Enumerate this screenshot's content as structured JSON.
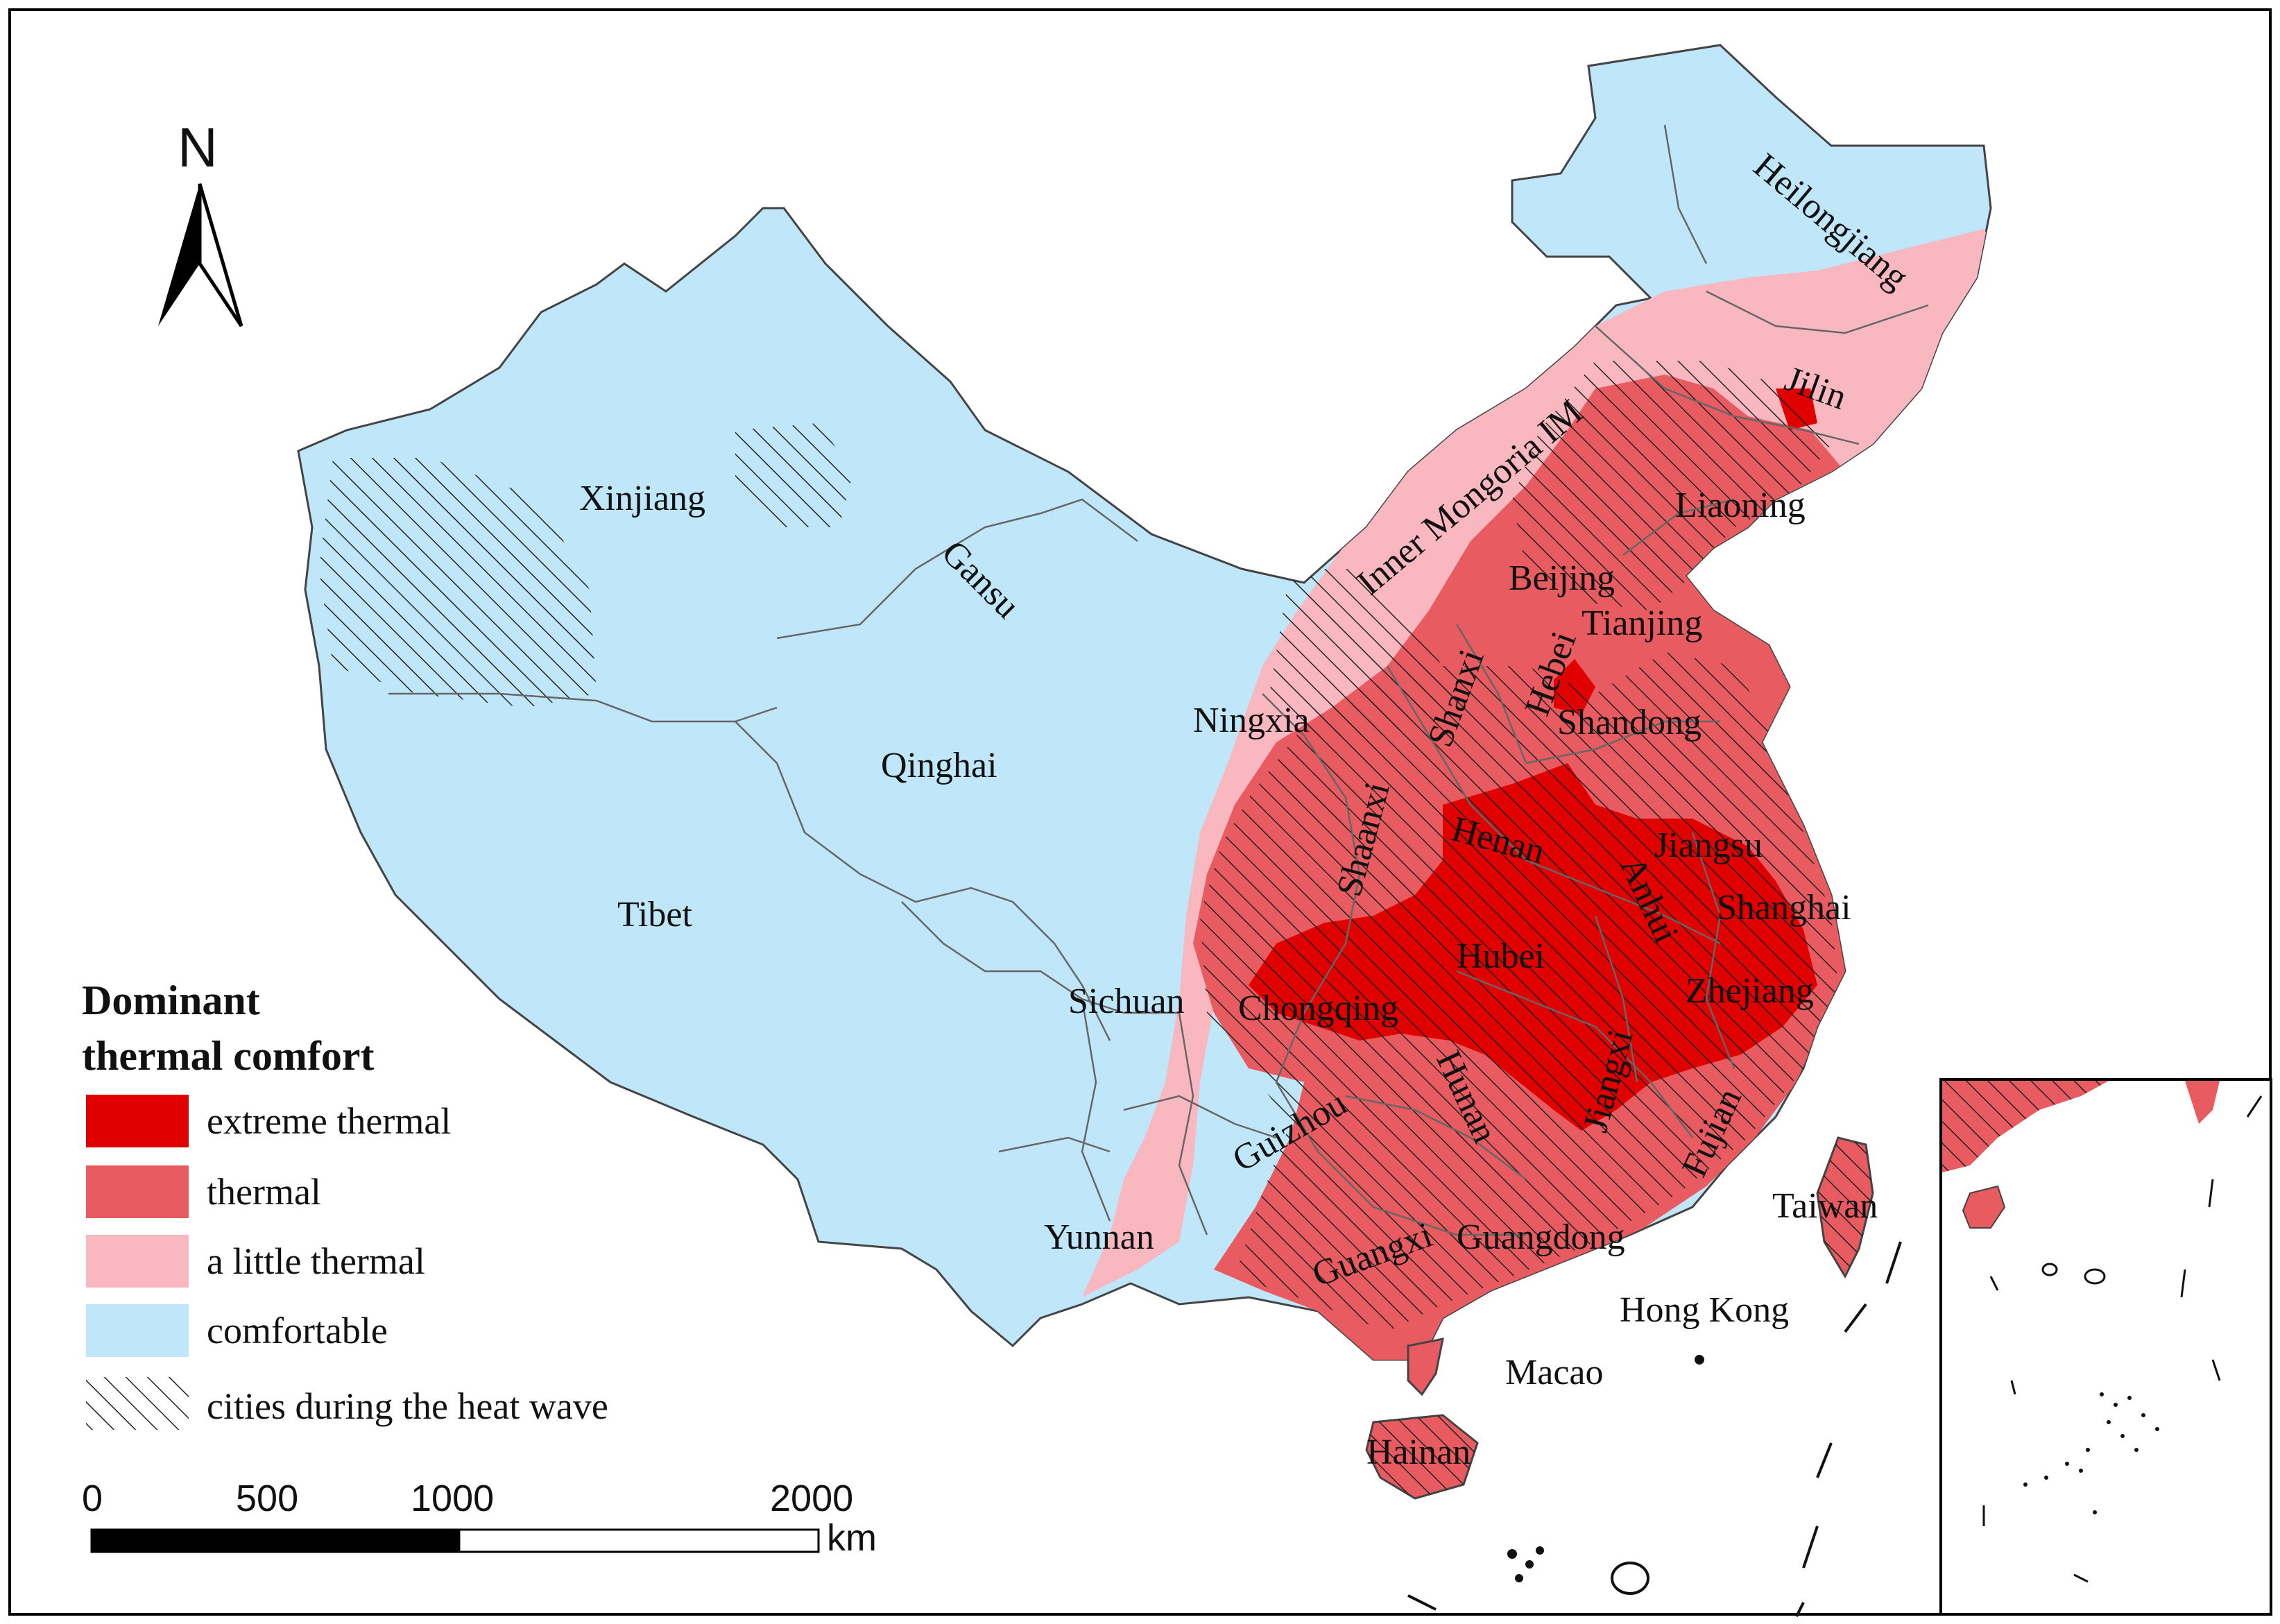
{
  "legend": {
    "title_line1": "Dominant",
    "title_line2": "thermal comfort",
    "items": [
      {
        "label": "extreme thermal",
        "color": "#e00000",
        "pattern": "solid"
      },
      {
        "label": "thermal",
        "color": "#e85b60",
        "pattern": "solid"
      },
      {
        "label": "a little thermal",
        "color": "#f9b8c0",
        "pattern": "solid"
      },
      {
        "label": "comfortable",
        "color": "#bfe6f9",
        "pattern": "solid"
      },
      {
        "label": "cities during the heat wave",
        "color": "#000000",
        "pattern": "hatch"
      }
    ]
  },
  "north_arrow": {
    "label": "N"
  },
  "scale_bar": {
    "ticks": [
      "0",
      "500",
      "1000",
      "2000"
    ],
    "unit": "km"
  },
  "regions": [
    {
      "name": "Xinjiang",
      "class": "comfortable"
    },
    {
      "name": "Gansu",
      "class": "comfortable"
    },
    {
      "name": "Qinghai",
      "class": "comfortable"
    },
    {
      "name": "Tibet",
      "class": "comfortable"
    },
    {
      "name": "Sichuan",
      "class": "comfortable"
    },
    {
      "name": "Yunnan",
      "class": "comfortable"
    },
    {
      "name": "Heilongjiang",
      "class": "comfortable"
    },
    {
      "name": "Inner Mongoria IM",
      "class": "a little thermal"
    },
    {
      "name": "Jilin",
      "class": "a little thermal"
    },
    {
      "name": "Liaoning",
      "class": "thermal"
    },
    {
      "name": "Beijing",
      "class": "thermal"
    },
    {
      "name": "Tianjing",
      "class": "thermal"
    },
    {
      "name": "Ningxia",
      "class": "a little thermal"
    },
    {
      "name": "Shanxi",
      "class": "thermal"
    },
    {
      "name": "Hebei",
      "class": "thermal"
    },
    {
      "name": "Shandong",
      "class": "thermal"
    },
    {
      "name": "Shaanxi",
      "class": "thermal"
    },
    {
      "name": "Henan",
      "class": "extreme thermal"
    },
    {
      "name": "Jiangsu",
      "class": "extreme thermal"
    },
    {
      "name": "Anhui",
      "class": "extreme thermal"
    },
    {
      "name": "Shanghai",
      "class": "extreme thermal"
    },
    {
      "name": "Hubei",
      "class": "extreme thermal"
    },
    {
      "name": "Chongqing",
      "class": "extreme thermal"
    },
    {
      "name": "Zhejiang",
      "class": "extreme thermal"
    },
    {
      "name": "Jiangxi",
      "class": "extreme thermal"
    },
    {
      "name": "Hunan",
      "class": "thermal"
    },
    {
      "name": "Guizhou",
      "class": "a little thermal"
    },
    {
      "name": "Fujian",
      "class": "thermal"
    },
    {
      "name": "Taiwan",
      "class": "thermal"
    },
    {
      "name": "Guangxi",
      "class": "thermal"
    },
    {
      "name": "Guangdong",
      "class": "thermal"
    },
    {
      "name": "Hong Kong",
      "class": "thermal"
    },
    {
      "name": "Macao",
      "class": "thermal"
    },
    {
      "name": "Hainan",
      "class": "thermal"
    }
  ]
}
